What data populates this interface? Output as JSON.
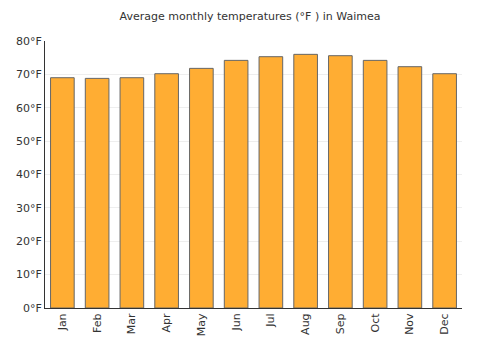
{
  "chart_data": {
    "type": "bar",
    "title": "Average monthly temperatures (°F ) in Waimea",
    "categories": [
      "Jan",
      "Feb",
      "Mar",
      "Apr",
      "May",
      "Jun",
      "Jul",
      "Aug",
      "Sep",
      "Oct",
      "Nov",
      "Dec"
    ],
    "values": [
      69.0,
      68.8,
      69.0,
      70.2,
      71.8,
      74.2,
      75.3,
      76.0,
      75.6,
      74.2,
      72.3,
      70.2
    ],
    "color": "#ffad33",
    "ylim": [
      0,
      80
    ],
    "yticks": [
      {
        "value": 0,
        "label": "0°F"
      },
      {
        "value": 10,
        "label": "10°F"
      },
      {
        "value": 20,
        "label": "20°F"
      },
      {
        "value": 30,
        "label": "30°F"
      },
      {
        "value": 40,
        "label": "40°F"
      },
      {
        "value": 50,
        "label": "50°F"
      },
      {
        "value": 60,
        "label": "60°F"
      },
      {
        "value": 70,
        "label": "70°F"
      },
      {
        "value": 80,
        "label": "80°F"
      }
    ],
    "grid": true
  }
}
